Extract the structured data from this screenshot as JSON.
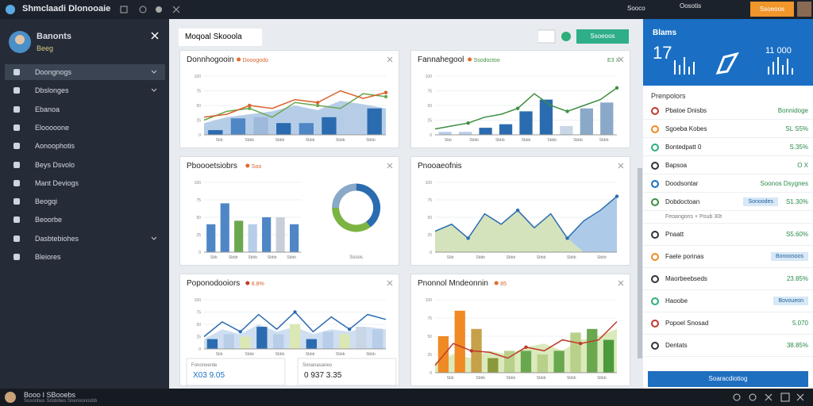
{
  "topbar": {
    "title": "Shmclaadi Dlonooaie",
    "items": [
      "Sooco",
      "Oosotis"
    ],
    "button": "Ssoeoos"
  },
  "sidebar": {
    "user": {
      "name": "Banonts",
      "role": "Beeg"
    },
    "menu": [
      "Doongnogs",
      "Dbslonges",
      "Ebanoa",
      "Elooooone",
      "Aonoophotis",
      "Beys Dsvolo",
      "Mant Deviogs",
      "Beogqi",
      "Beoorbe",
      "Dasbtebiohes",
      "Bleiores"
    ]
  },
  "main": {
    "title": "Moqoal Skooola",
    "button": "Ssoeoos"
  },
  "cards": [
    {
      "title": "Donnhogooin",
      "legend": "Dooogodo",
      "xlabels": [
        "Sbb",
        "Sbbb",
        "Sbbb",
        "Sbbb",
        "Sbbb",
        "Sbbb"
      ],
      "ylim": [
        0,
        100
      ],
      "yticks": [
        0,
        25,
        50,
        75,
        100
      ],
      "areas": [
        {
          "values": [
            20,
            30,
            35,
            40,
            50,
            42,
            58,
            52,
            45
          ],
          "color": "#a9c4e4"
        }
      ],
      "bars": {
        "values": [
          8,
          28,
          30,
          20,
          20,
          30,
          42,
          45
        ],
        "colors": [
          "#2b6cb0",
          "#4f86c6",
          "#9fb9da",
          "#2b6cb0",
          "#4f86c6",
          "#2b6cb0",
          "#b7cde8",
          "#2b6cb0"
        ]
      },
      "lines": [
        {
          "values": [
            25,
            40,
            45,
            30,
            55,
            50,
            45,
            70,
            65
          ],
          "color": "#6aa84f"
        },
        {
          "values": [
            30,
            35,
            50,
            45,
            60,
            55,
            75,
            62,
            72
          ],
          "color": "#d9622b"
        }
      ]
    },
    {
      "title": "Fannahegool",
      "legend": "Ssodoctoo",
      "badge": "E3 X",
      "xlabels": [
        "Sbb",
        "Sbbb",
        "Sbbb",
        "Sbbb",
        "Sbbb",
        "Sbbb",
        "Sbbb"
      ],
      "ylim": [
        0,
        100
      ],
      "yticks": [
        0,
        25,
        50,
        75,
        100
      ],
      "areas": [],
      "bars": {
        "values": [
          5,
          5,
          12,
          18,
          40,
          60,
          15,
          45,
          55
        ],
        "colors": [
          "#b7cde8",
          "#b7cde8",
          "#2b6cb0",
          "#2b6cb0",
          "#2b6cb0",
          "#2b6cb0",
          "#c9d6e6",
          "#8aa9c9",
          "#8aa9c9"
        ]
      },
      "lines": [
        {
          "values": [
            10,
            15,
            20,
            30,
            35,
            45,
            70,
            50,
            40,
            50,
            60,
            80
          ],
          "color": "#3e8e41"
        }
      ]
    },
    {
      "title": "Pboooetsiobrs",
      "legend": "Soo",
      "xlabels": [
        "Sbb",
        "Sbbb",
        "Sbbb",
        "Sbbb",
        "Sbbb"
      ],
      "donut_label": "Ssoos",
      "ylim": [
        0,
        100
      ],
      "yticks": [
        0,
        25,
        50,
        75,
        100
      ],
      "areas": [],
      "bars": {
        "values": [
          40,
          70,
          45,
          40,
          50,
          50,
          40
        ],
        "colors": [
          "#4f86c6",
          "#4f86c6",
          "#6aa84f",
          "#b7cde8",
          "#4f86c6",
          "#c9cfd8",
          "#4f86c6"
        ]
      },
      "lines": [],
      "donut": {
        "values": [
          40,
          35,
          25
        ],
        "colors": [
          "#2b6cb0",
          "#7cb342",
          "#8aa9c9"
        ]
      }
    },
    {
      "title": "Pnooaeofnis",
      "xlabels": [
        "Sbb",
        "Sbbb",
        "Sbbb",
        "Sbbb",
        "Sbbb",
        "Sbbb"
      ],
      "ylim": [
        0,
        100
      ],
      "yticks": [
        0,
        25,
        50,
        75,
        100
      ],
      "areas": [
        {
          "values": [
            30,
            40,
            20,
            55,
            40,
            60,
            35,
            55,
            20,
            45,
            60,
            80
          ],
          "color": "#9fc2e4"
        },
        {
          "values": [
            30,
            40,
            20,
            55,
            40,
            60,
            35,
            55,
            20,
            0,
            0,
            0
          ],
          "color": "#dbe8b4"
        }
      ],
      "bars": {
        "values": [],
        "colors": []
      },
      "lines": [
        {
          "values": [
            30,
            40,
            20,
            55,
            40,
            60,
            35,
            55,
            20,
            45,
            60,
            80
          ],
          "color": "#2b6cb0"
        }
      ]
    },
    {
      "title": "Poponodooiors",
      "legend": "8.8%",
      "xlabels": [
        "Sbb",
        "Sbbb",
        "Sbbb",
        "Sbbb",
        "Sbbb",
        "Sbbb"
      ],
      "ylim": [
        0,
        100
      ],
      "yticks": [
        0,
        25,
        50,
        75,
        100
      ],
      "areas": [
        {
          "values": [
            20,
            40,
            30,
            50,
            35,
            45,
            30,
            40,
            35,
            45,
            40
          ],
          "color": "#c7d9ee"
        }
      ],
      "bars": {
        "values": [
          20,
          30,
          25,
          45,
          30,
          50,
          20,
          35,
          30,
          45,
          40
        ],
        "colors": [
          "#2b6cb0",
          "#b7cde8",
          "#dbe8b4",
          "#2b6cb0",
          "#b7cde8",
          "#dbe8b4",
          "#2b6cb0",
          "#b7cde8",
          "#dbe8b4",
          "#c9d6e6",
          "#b7cde8"
        ]
      },
      "lines": [
        {
          "values": [
            25,
            55,
            35,
            70,
            40,
            75,
            35,
            65,
            40,
            70,
            60
          ],
          "color": "#2b6cb0"
        }
      ],
      "stats": [
        {
          "label": "Fononoerde",
          "value": "X03 9.05"
        },
        {
          "label": "Sonanasaneo",
          "value": "0 937 3.35"
        }
      ]
    },
    {
      "title": "Pnonnol Mndeonnin",
      "legend": "85",
      "xlabels": [
        "Sbb",
        "Sbbb",
        "Sbbb",
        "Sbbb",
        "Sbbb",
        "Sbbb"
      ],
      "ylim": [
        0,
        100
      ],
      "yticks": [
        0,
        25,
        50,
        75,
        100
      ],
      "areas": [
        {
          "values": [
            15,
            25,
            20,
            30,
            25,
            35,
            40,
            30,
            45,
            50,
            60
          ],
          "color": "#d5e6b0"
        }
      ],
      "bars": {
        "values": [
          50,
          85,
          60,
          20,
          30,
          30,
          25,
          30,
          55,
          60,
          45
        ],
        "colors": [
          "#f08a24",
          "#f08a24",
          "#c7a04a",
          "#8a9a3a",
          "#b9d08a",
          "#6aa84f",
          "#b9d08a",
          "#6aa84f",
          "#b9d08a",
          "#6aa84f",
          "#4c9a3c"
        ]
      },
      "lines": [
        {
          "values": [
            10,
            40,
            30,
            28,
            20,
            35,
            30,
            45,
            40,
            45,
            70
          ],
          "color": "#c0392b"
        }
      ]
    }
  ],
  "right": {
    "header": {
      "title": "Blams",
      "value": "17",
      "value2": "11 000"
    },
    "section": "Prenpolors",
    "items": [
      {
        "label": "Pbatoe Dnisbs",
        "value": "Bonnidoge"
      },
      {
        "label": "Sgoeba Kobes",
        "value": "SL S5%"
      },
      {
        "label": "Bontedpatt 0",
        "value": "S.35%"
      },
      {
        "label": "Bapsoa",
        "value": "O X"
      },
      {
        "label": "Doodsontar",
        "value": "Soonos Dsygnes"
      },
      {
        "label": "Dobdoctoan",
        "badge": "Sonoodes",
        "value": "S1.30%"
      },
      {
        "label": "Feoangons + Poub 30t"
      },
      {
        "label": "Pnaatt",
        "value": "S5.60%"
      },
      {
        "label": "Faele porinas",
        "badge": "Bonoosoos"
      },
      {
        "label": "Maorbeebseds",
        "value": "23.85%"
      },
      {
        "label": "Haoobe",
        "badge": "Bovoueon"
      },
      {
        "label": "Popoel Snosad",
        "value": "5.070"
      },
      {
        "label": "Dentats",
        "value": "38.85%"
      }
    ],
    "button": "Soaracdiotiog"
  },
  "footer": {
    "title": "Booo I SBooebs",
    "subtitle": "Sosonbes Sdobibes Snenoonosbb"
  }
}
